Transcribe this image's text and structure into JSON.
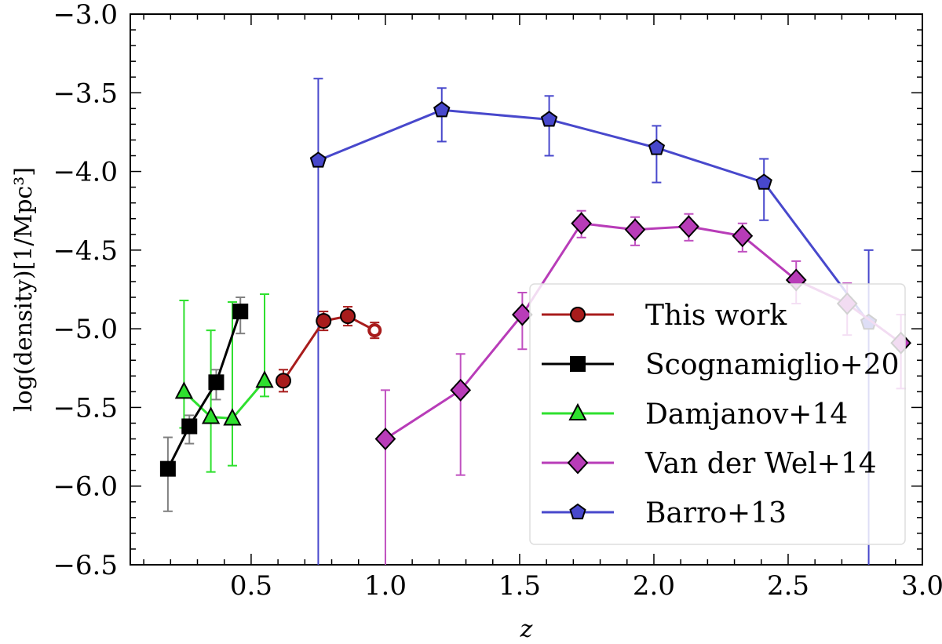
{
  "chart_data": {
    "type": "line",
    "xlabel": "z",
    "ylabel": "log(density)[1/Mpc³]",
    "xlim": [
      0.05,
      3.0
    ],
    "ylim": [
      -6.5,
      -3.0
    ],
    "xticks": [
      {
        "v": 0.5,
        "label": "0.5"
      },
      {
        "v": 1.0,
        "label": "1.0"
      },
      {
        "v": 1.5,
        "label": "1.5"
      },
      {
        "v": 2.0,
        "label": "2.0"
      },
      {
        "v": 2.5,
        "label": "2.5"
      },
      {
        "v": 3.0,
        "label": "3.0"
      }
    ],
    "yticks": [
      {
        "v": -3.0,
        "label": "−3.0"
      },
      {
        "v": -3.5,
        "label": "−3.5"
      },
      {
        "v": -4.0,
        "label": "−4.0"
      },
      {
        "v": -4.5,
        "label": "−4.5"
      },
      {
        "v": -5.0,
        "label": "−5.0"
      },
      {
        "v": -5.5,
        "label": "−5.5"
      },
      {
        "v": -6.0,
        "label": "−6.0"
      },
      {
        "v": -6.5,
        "label": "−6.5"
      }
    ],
    "grid": false,
    "legend_position": "lower-right",
    "series": [
      {
        "name": "Barro+13",
        "color": "#4848cc",
        "marker": "pentagon",
        "err_color": "#4848cc",
        "points": [
          {
            "x": 0.75,
            "y": -3.93,
            "lo": -6.5,
            "hi": -3.41
          },
          {
            "x": 1.21,
            "y": -3.61,
            "lo": -3.81,
            "hi": -3.47
          },
          {
            "x": 1.61,
            "y": -3.67,
            "lo": -3.9,
            "hi": -3.52
          },
          {
            "x": 2.01,
            "y": -3.85,
            "lo": -4.07,
            "hi": -3.71
          },
          {
            "x": 2.41,
            "y": -4.07,
            "lo": -4.31,
            "hi": -3.92
          },
          {
            "x": 2.8,
            "y": -4.96,
            "lo": -6.5,
            "hi": -4.5
          }
        ]
      },
      {
        "name": "Van der Wel+14",
        "color": "#b83cb8",
        "marker": "diamond",
        "err_color": "#c050c0",
        "points": [
          {
            "x": 1.0,
            "y": -5.7,
            "lo": -6.5,
            "hi": -5.39
          },
          {
            "x": 1.28,
            "y": -5.39,
            "lo": -5.93,
            "hi": -5.16
          },
          {
            "x": 1.51,
            "y": -4.91,
            "lo": -5.13,
            "hi": -4.77
          },
          {
            "x": 1.73,
            "y": -4.33,
            "lo": -4.42,
            "hi": -4.25
          },
          {
            "x": 1.93,
            "y": -4.37,
            "lo": -4.47,
            "hi": -4.29
          },
          {
            "x": 2.13,
            "y": -4.35,
            "lo": -4.44,
            "hi": -4.27
          },
          {
            "x": 2.33,
            "y": -4.41,
            "lo": -4.51,
            "hi": -4.33
          },
          {
            "x": 2.53,
            "y": -4.69,
            "lo": -4.84,
            "hi": -4.57
          },
          {
            "x": 2.72,
            "y": -4.84,
            "lo": -5.04,
            "hi": -4.71
          },
          {
            "x": 2.92,
            "y": -5.09,
            "lo": -5.38,
            "hi": -4.91
          }
        ]
      },
      {
        "name": "Damjanov+14",
        "color": "#2ee02e",
        "marker": "triangle",
        "err_color": "#2ee02e",
        "points": [
          {
            "x": 0.25,
            "y": -5.4,
            "lo": -5.63,
            "hi": -4.82
          },
          {
            "x": 0.35,
            "y": -5.56,
            "lo": -5.91,
            "hi": -5.01
          },
          {
            "x": 0.43,
            "y": -5.57,
            "lo": -5.87,
            "hi": -4.83
          },
          {
            "x": 0.55,
            "y": -5.33,
            "lo": -5.43,
            "hi": -4.78
          }
        ]
      },
      {
        "name": "Scognamiglio+20",
        "color": "#000000",
        "marker": "square",
        "err_color": "#808080",
        "points": [
          {
            "x": 0.19,
            "y": -5.89,
            "lo": -6.16,
            "hi": -5.69
          },
          {
            "x": 0.27,
            "y": -5.62,
            "lo": -5.73,
            "hi": -5.55
          },
          {
            "x": 0.37,
            "y": -5.34,
            "lo": -5.45,
            "hi": -5.26
          },
          {
            "x": 0.46,
            "y": -4.89,
            "lo": -5.03,
            "hi": -4.8
          }
        ]
      },
      {
        "name": "This work",
        "color": "#a81c1c",
        "marker": "circle",
        "err_color": "#a81c1c",
        "points": [
          {
            "x": 0.62,
            "y": -5.33,
            "lo": -5.4,
            "hi": -5.26
          },
          {
            "x": 0.77,
            "y": -4.95,
            "lo": -5.01,
            "hi": -4.89
          },
          {
            "x": 0.86,
            "y": -4.92,
            "lo": -4.98,
            "hi": -4.86
          },
          {
            "x": 0.96,
            "y": -5.01,
            "lo": -5.06,
            "hi": -4.96,
            "open": true
          }
        ]
      }
    ],
    "legend_order": [
      "This work",
      "Scognamiglio+20",
      "Damjanov+14",
      "Van der Wel+14",
      "Barro+13"
    ]
  }
}
